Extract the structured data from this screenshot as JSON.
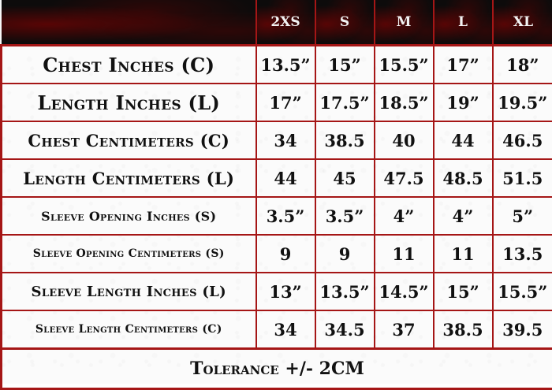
{
  "size_chart": {
    "sizes": [
      "2XS",
      "S",
      "M",
      "L",
      "XL"
    ],
    "rows": [
      {
        "label": "Chest Inches (C)",
        "values": [
          "13.5”",
          "15”",
          "15.5”",
          "17”",
          "18”"
        ]
      },
      {
        "label": "Length Inches (L)",
        "values": [
          "17”",
          "17.5”",
          "18.5”",
          "19”",
          "19.5”"
        ]
      },
      {
        "label": "Chest Centimeters (C)",
        "values": [
          "34",
          "38.5",
          "40",
          "44",
          "46.5"
        ]
      },
      {
        "label": "Length Centimeters (L)",
        "values": [
          "44",
          "45",
          "47.5",
          "48.5",
          "51.5"
        ]
      },
      {
        "label": "Sleeve Opening Inches (S)",
        "values": [
          "3.5”",
          "3.5”",
          "4”",
          "4”",
          "5”"
        ]
      },
      {
        "label": "Sleeve Opening Centimeters (S)",
        "values": [
          "9",
          "9",
          "11",
          "11",
          "13.5"
        ]
      },
      {
        "label": "Sleeve Length Inches (L)",
        "values": [
          "13”",
          "13.5”",
          "14.5”",
          "15”",
          "15.5”"
        ]
      },
      {
        "label": "Sleeve Length Centimeters (C)",
        "values": [
          "34",
          "34.5",
          "37",
          "38.5",
          "39.5"
        ]
      }
    ],
    "footer": "Tolerance +/- 2CM"
  },
  "colors": {
    "border": "#a51616",
    "header_bg": "#0d0b0b",
    "header_text": "#f2f2f2",
    "cell_text": "#111111"
  }
}
